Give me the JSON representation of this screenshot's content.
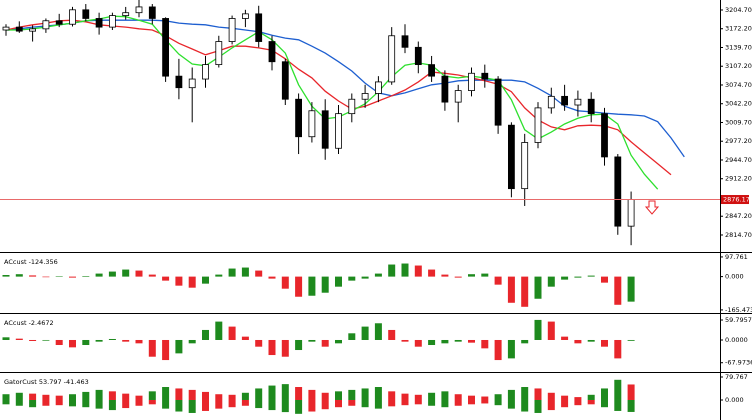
{
  "chart_data": [
    {
      "type": "candlestick",
      "open": [
        3170,
        3175,
        3168,
        3172,
        3186,
        3180,
        3205,
        3190,
        3175,
        3195,
        3200,
        3210,
        3190,
        3090,
        3070,
        3085,
        3110,
        3150,
        3190,
        3198,
        3150,
        3115,
        3050,
        2985,
        3030,
        2965,
        3025,
        3050,
        3060,
        3080,
        3160,
        3140,
        3110,
        3090,
        3045,
        3065,
        3095,
        3085,
        3005,
        2895,
        2975,
        3035,
        3055,
        3040,
        3050,
        3025,
        2950,
        2830
      ],
      "high": [
        3180,
        3185,
        3178,
        3190,
        3198,
        3210,
        3215,
        3200,
        3200,
        3210,
        3222,
        3215,
        3192,
        3120,
        3105,
        3125,
        3160,
        3195,
        3205,
        3212,
        3160,
        3120,
        3060,
        3045,
        3050,
        3040,
        3060,
        3075,
        3090,
        3175,
        3180,
        3150,
        3125,
        3100,
        3075,
        3105,
        3110,
        3090,
        3010,
        2990,
        3045,
        3070,
        3075,
        3065,
        3062,
        3035,
        2955,
        2890
      ],
      "low": [
        3160,
        3165,
        3150,
        3165,
        3175,
        3176,
        3185,
        3162,
        3170,
        3188,
        3192,
        3180,
        3080,
        3050,
        3010,
        3070,
        3105,
        3145,
        3175,
        3140,
        3100,
        3040,
        2955,
        2975,
        2945,
        2955,
        3010,
        3035,
        3045,
        3075,
        3130,
        3095,
        3080,
        3030,
        3010,
        3055,
        3070,
        2990,
        2880,
        2865,
        2965,
        3025,
        3030,
        3020,
        3010,
        2935,
        2815,
        2797
      ],
      "close": [
        3175,
        3168,
        3172,
        3186,
        3180,
        3205,
        3190,
        3175,
        3195,
        3200,
        3210,
        3190,
        3090,
        3070,
        3085,
        3110,
        3150,
        3190,
        3198,
        3150,
        3115,
        3050,
        2985,
        3030,
        2965,
        3025,
        3050,
        3060,
        3080,
        3160,
        3140,
        3110,
        3090,
        3045,
        3065,
        3095,
        3085,
        3005,
        2895,
        2975,
        3035,
        3055,
        3040,
        3050,
        3025,
        2950,
        2830,
        2876.17
      ],
      "up_color": "#ffffff",
      "down_color": "#000000",
      "lines": [
        {
          "color": "#1e5fd0",
          "values": [
            3170,
            3172,
            3175,
            3177,
            3179,
            3182,
            3186,
            3187,
            3187,
            3187,
            3187,
            3187,
            3186,
            3182,
            3180,
            3179,
            3175,
            3173,
            3170,
            3167,
            3161,
            3156,
            3153,
            3142,
            3130,
            3115,
            3099,
            3078,
            3061,
            3056,
            3061,
            3068,
            3075,
            3078,
            3082,
            3083,
            3083,
            3083,
            3083,
            3080,
            3069,
            3056,
            3038,
            3030,
            3028,
            3026,
            3024,
            3023,
            3021,
            3011,
            2983,
            2950
          ]
        },
        {
          "color": "#e8262b",
          "values": [
            3170,
            3175,
            3179,
            3182,
            3186,
            3187,
            3184,
            3179,
            3177,
            3175,
            3172,
            3170,
            3160,
            3147,
            3137,
            3127,
            3134,
            3142,
            3142,
            3139,
            3135,
            3120,
            3102,
            3087,
            3064,
            3047,
            3033,
            3038,
            3047,
            3056,
            3066,
            3080,
            3097,
            3095,
            3092,
            3087,
            3082,
            3076,
            3063,
            3035,
            3014,
            3002,
            2997,
            3004,
            3005,
            3004,
            2997,
            2976,
            2957,
            2938,
            2919,
            null
          ]
        },
        {
          "color": "#2ee02e",
          "values": [
            3170,
            3170,
            3172,
            3175,
            3179,
            3182,
            3186,
            3189,
            3194,
            3193,
            3187,
            3180,
            3153,
            3128,
            3111,
            3108,
            3123,
            3139,
            3153,
            3167,
            3153,
            3130,
            3075,
            3038,
            3016,
            3019,
            3030,
            3042,
            3063,
            3089,
            3109,
            3113,
            3109,
            3090,
            3087,
            3090,
            3087,
            3083,
            3049,
            2997,
            2981,
            2993,
            3007,
            3017,
            3023,
            3024,
            3007,
            2953,
            2920,
            2894,
            null,
            null
          ]
        }
      ],
      "price_line": 2876.17,
      "price_line_color": "#e86a6a",
      "ylim": [
        2785.2,
        3222.0
      ],
      "yticks": [
        {
          "value": 3204.7,
          "label": "3204.70"
        },
        {
          "value": 3172.2,
          "label": "3172.20"
        },
        {
          "value": 3139.7,
          "label": "3139.70"
        },
        {
          "value": 3107.2,
          "label": "3107.20"
        },
        {
          "value": 3074.7,
          "label": "3074.70"
        },
        {
          "value": 3042.2,
          "label": "3042.20"
        },
        {
          "value": 3009.7,
          "label": "3009.70"
        },
        {
          "value": 2977.2,
          "label": "2977.20"
        },
        {
          "value": 2944.7,
          "label": "2944.70"
        },
        {
          "value": 2912.2,
          "label": "2912.20"
        },
        {
          "value": 2847.2,
          "label": "2847.20"
        },
        {
          "value": 2814.7,
          "label": "2814.70"
        }
      ]
    },
    {
      "type": "bar",
      "title": "ACcust -124.356",
      "values": [
        8,
        12,
        6,
        -3,
        2,
        -5,
        3,
        15,
        25,
        35,
        30,
        10,
        -20,
        -45,
        -55,
        -35,
        10,
        40,
        45,
        30,
        -10,
        -60,
        -100,
        -95,
        -80,
        -50,
        -20,
        -10,
        15,
        60,
        65,
        55,
        35,
        10,
        -5,
        12,
        15,
        -40,
        -130,
        -150,
        -110,
        -50,
        -15,
        -5,
        5,
        -30,
        -140,
        -124.356
      ],
      "up_color": "#1e8a1e",
      "down_color": "#e8262b",
      "ylim": [
        -180.8,
        117.3
      ],
      "yticks": [
        97.761,
        {
          "value": 0,
          "label": "0.000"
        },
        -165.473
      ]
    },
    {
      "type": "bar",
      "title": "ACcust -2.4672",
      "values": [
        8,
        4,
        -3,
        -2,
        -15,
        -22,
        -15,
        -5,
        3,
        -5,
        -10,
        -50,
        -60,
        -40,
        -10,
        30,
        55,
        40,
        10,
        -20,
        -45,
        -50,
        -30,
        -5,
        -20,
        -10,
        20,
        40,
        50,
        30,
        -5,
        -20,
        -15,
        -10,
        -5,
        -8,
        -25,
        -60,
        -55,
        -10,
        60,
        55,
        10,
        -10,
        -5,
        -20,
        -55,
        -2.4672
      ],
      "up_color": "#1e8a1e",
      "down_color": "#e8262b",
      "ylim": [
        -95.7,
        77.7
      ],
      "yticks": [
        59.7957,
        {
          "value": 0,
          "label": "0.0000"
        },
        -67.9736
      ]
    },
    {
      "type": "gator",
      "title": "GatorCust 53.797 -41.463",
      "series": [
        {
          "values": [
            20,
            25,
            22,
            18,
            15,
            20,
            28,
            35,
            30,
            22,
            15,
            30,
            45,
            40,
            35,
            28,
            20,
            18,
            25,
            40,
            50,
            55,
            45,
            35,
            25,
            30,
            35,
            40,
            45,
            30,
            22,
            18,
            25,
            30,
            20,
            15,
            12,
            20,
            35,
            45,
            40,
            25,
            15,
            10,
            18,
            40,
            70,
            53.797
          ]
        },
        {
          "values": [
            -15,
            -20,
            -25,
            -20,
            -18,
            -22,
            -25,
            -30,
            -35,
            -28,
            -20,
            -15,
            -30,
            -40,
            -45,
            -38,
            -30,
            -25,
            -20,
            -28,
            -35,
            -42,
            -48,
            -40,
            -32,
            -25,
            -20,
            -25,
            -30,
            -22,
            -18,
            -15,
            -20,
            -25,
            -20,
            -15,
            -12,
            -18,
            -30,
            -40,
            -45,
            -35,
            -25,
            -18,
            -15,
            -25,
            -38,
            -41.463
          ]
        }
      ],
      "up_color": "#1e8a1e",
      "down_color": "#e8262b",
      "ylim": [
        -69.4,
        93.6
      ],
      "yticks": [
        79.767,
        {
          "value": 0,
          "label": "0.000"
        }
      ]
    }
  ]
}
